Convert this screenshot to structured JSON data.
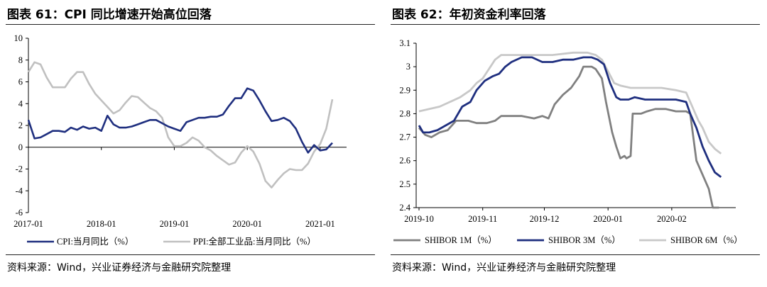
{
  "panels": [
    {
      "title": "图表 61：CPI 同比增速开始高位回落",
      "source": "资料来源：Wind，兴业证券经济与金融研究院整理",
      "chart_data": {
        "type": "line",
        "x_ticks": [
          "2017-01",
          "2018-01",
          "2019-01",
          "2020-01",
          "2021-01"
        ],
        "ylim": [
          -6,
          10
        ],
        "y_ticks": [
          -6,
          -4,
          -2,
          0,
          2,
          4,
          6,
          8,
          10
        ],
        "legend_position": "bottom",
        "grid": false,
        "series": [
          {
            "name": "CPI:当月同比（%）",
            "color": "#1f2f7f",
            "values": [
              2.5,
              0.8,
              0.9,
              1.2,
              1.5,
              1.5,
              1.4,
              1.8,
              1.6,
              1.9,
              1.7,
              1.8,
              1.5,
              2.9,
              2.1,
              1.8,
              1.8,
              1.9,
              2.1,
              2.3,
              2.5,
              2.5,
              2.2,
              1.9,
              1.7,
              1.5,
              2.3,
              2.5,
              2.7,
              2.7,
              2.8,
              2.8,
              3.0,
              3.8,
              4.5,
              4.5,
              5.4,
              5.2,
              4.3,
              3.3,
              2.4,
              2.5,
              2.7,
              2.4,
              1.7,
              0.5,
              -0.5,
              0.2,
              -0.3,
              -0.2,
              0.4
            ],
            "start": "2017-01"
          },
          {
            "name": "PPI:全部工业品:当月同比（%）",
            "color": "#c0c0c0",
            "values": [
              6.9,
              7.8,
              7.6,
              6.4,
              5.5,
              5.5,
              5.5,
              6.3,
              6.9,
              6.9,
              5.8,
              4.9,
              4.3,
              3.7,
              3.1,
              3.4,
              4.1,
              4.7,
              4.6,
              4.1,
              3.6,
              3.3,
              2.7,
              0.9,
              0.1,
              0.1,
              0.4,
              0.9,
              0.6,
              0.0,
              -0.3,
              -0.8,
              -1.2,
              -1.6,
              -1.4,
              -0.5,
              0.1,
              -0.4,
              -1.5,
              -3.1,
              -3.7,
              -3.0,
              -2.4,
              -2.0,
              -2.1,
              -2.1,
              -1.5,
              -0.4,
              0.3,
              1.7,
              4.4
            ],
            "start": "2017-01"
          }
        ]
      }
    },
    {
      "title": "图表 62：年初资金利率回落",
      "source": "资料来源：Wind，兴业证券经济与金融研究院整理",
      "chart_data": {
        "type": "line",
        "x_ticks": [
          "2019-10",
          "2019-11",
          "2019-12",
          "2020-01",
          "2020-02"
        ],
        "ylim": [
          2.4,
          3.1
        ],
        "y_ticks": [
          2.4,
          2.5,
          2.6,
          2.7,
          2.8,
          2.9,
          3.0,
          3.1
        ],
        "legend_position": "bottom",
        "grid": false,
        "series": [
          {
            "name": "SHIBOR 1M（%）",
            "color": "#808080",
            "points": [
              [
                0,
                2.74
              ],
              [
                3,
                2.71
              ],
              [
                6,
                2.7
              ],
              [
                10,
                2.72
              ],
              [
                14,
                2.73
              ],
              [
                18,
                2.77
              ],
              [
                24,
                2.77
              ],
              [
                28,
                2.76
              ],
              [
                33,
                2.76
              ],
              [
                37,
                2.77
              ],
              [
                40,
                2.79
              ],
              [
                46,
                2.79
              ],
              [
                50,
                2.79
              ],
              [
                56,
                2.78
              ],
              [
                60,
                2.79
              ],
              [
                63,
                2.78
              ],
              [
                66,
                2.84
              ],
              [
                70,
                2.88
              ],
              [
                74,
                2.91
              ],
              [
                78,
                2.96
              ],
              [
                80,
                3.0
              ],
              [
                84,
                3.0
              ],
              [
                86,
                2.99
              ],
              [
                89,
                2.95
              ],
              [
                91,
                2.85
              ],
              [
                94,
                2.72
              ],
              [
                96,
                2.66
              ],
              [
                98,
                2.61
              ],
              [
                100,
                2.62
              ],
              [
                101,
                2.61
              ],
              [
                103,
                2.62
              ],
              [
                104,
                2.8
              ],
              [
                108,
                2.8
              ],
              [
                111,
                2.81
              ],
              [
                115,
                2.82
              ],
              [
                120,
                2.82
              ],
              [
                125,
                2.81
              ],
              [
                130,
                2.81
              ],
              [
                132,
                2.8
              ],
              [
                135,
                2.6
              ],
              [
                138,
                2.54
              ],
              [
                141,
                2.48
              ],
              [
                143,
                2.4
              ],
              [
                146,
                2.4
              ]
            ]
          },
          {
            "name": "SHIBOR 3M（%）",
            "color": "#1f2f7f",
            "points": [
              [
                0,
                2.75
              ],
              [
                2,
                2.72
              ],
              [
                5,
                2.72
              ],
              [
                9,
                2.73
              ],
              [
                13,
                2.75
              ],
              [
                17,
                2.77
              ],
              [
                21,
                2.83
              ],
              [
                25,
                2.85
              ],
              [
                28,
                2.9
              ],
              [
                32,
                2.94
              ],
              [
                36,
                2.96
              ],
              [
                39,
                2.97
              ],
              [
                42,
                3.0
              ],
              [
                45,
                3.02
              ],
              [
                50,
                3.04
              ],
              [
                55,
                3.04
              ],
              [
                60,
                3.02
              ],
              [
                65,
                3.02
              ],
              [
                70,
                3.03
              ],
              [
                75,
                3.03
              ],
              [
                80,
                3.04
              ],
              [
                84,
                3.04
              ],
              [
                87,
                3.03
              ],
              [
                90,
                3.01
              ],
              [
                93,
                2.93
              ],
              [
                96,
                2.87
              ],
              [
                98,
                2.86
              ],
              [
                102,
                2.86
              ],
              [
                105,
                2.87
              ],
              [
                110,
                2.86
              ],
              [
                115,
                2.86
              ],
              [
                120,
                2.86
              ],
              [
                125,
                2.86
              ],
              [
                130,
                2.85
              ],
              [
                132,
                2.8
              ],
              [
                135,
                2.74
              ],
              [
                138,
                2.66
              ],
              [
                141,
                2.6
              ],
              [
                144,
                2.55
              ],
              [
                147,
                2.53
              ]
            ]
          },
          {
            "name": "SHIBOR 6M（%）",
            "color": "#c8c8c8",
            "points": [
              [
                0,
                2.81
              ],
              [
                5,
                2.82
              ],
              [
                10,
                2.83
              ],
              [
                15,
                2.85
              ],
              [
                20,
                2.87
              ],
              [
                25,
                2.9
              ],
              [
                28,
                2.93
              ],
              [
                31,
                2.95
              ],
              [
                34,
                2.99
              ],
              [
                37,
                3.03
              ],
              [
                40,
                3.05
              ],
              [
                45,
                3.05
              ],
              [
                55,
                3.05
              ],
              [
                65,
                3.05
              ],
              [
                75,
                3.06
              ],
              [
                82,
                3.06
              ],
              [
                86,
                3.05
              ],
              [
                89,
                3.03
              ],
              [
                92,
                2.98
              ],
              [
                95,
                2.93
              ],
              [
                98,
                2.92
              ],
              [
                103,
                2.91
              ],
              [
                110,
                2.91
              ],
              [
                118,
                2.91
              ],
              [
                125,
                2.9
              ],
              [
                130,
                2.89
              ],
              [
                133,
                2.83
              ],
              [
                136,
                2.77
              ],
              [
                138,
                2.74
              ],
              [
                141,
                2.68
              ],
              [
                144,
                2.65
              ],
              [
                147,
                2.63
              ]
            ]
          }
        ],
        "x_tick_positions": [
          0,
          31,
          61,
          92,
          123
        ]
      }
    }
  ]
}
